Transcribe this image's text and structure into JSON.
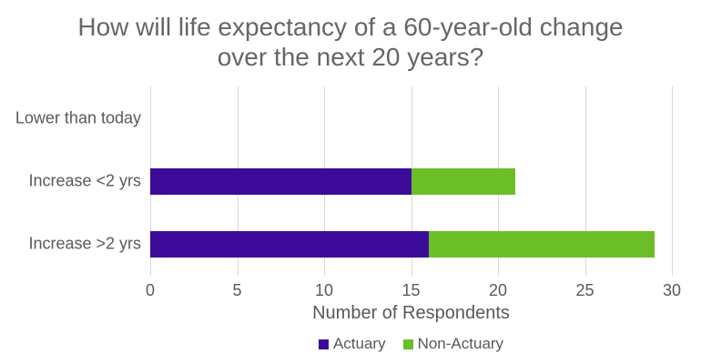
{
  "chart_data": {
    "type": "bar",
    "orientation": "horizontal_stacked",
    "title": "How will life expectancy of a 60-year-old change over the next 20 years?",
    "title_lines": [
      "How will life expectancy of a 60-year-old change",
      "over the next 20 years?"
    ],
    "categories": [
      "Lower than today",
      "Increase <2 yrs",
      "Increase >2 yrs"
    ],
    "series": [
      {
        "name": "Actuary",
        "color": "#3C0B99",
        "values": [
          0,
          15,
          16
        ]
      },
      {
        "name": "Non-Actuary",
        "color": "#6CBE28",
        "values": [
          0,
          6,
          13
        ]
      }
    ],
    "stacked_totals": [
      0,
      21,
      29
    ],
    "xlabel": "Number of Respondents",
    "xlim": [
      0,
      30
    ],
    "xticks": [
      0,
      5,
      10,
      15,
      20,
      25,
      30
    ],
    "grid": true,
    "gridline_color": "#D9D9D9",
    "text_color": "#595959",
    "title_color": "#666666",
    "background": "#FFFFFF",
    "legend_position": "bottom"
  }
}
